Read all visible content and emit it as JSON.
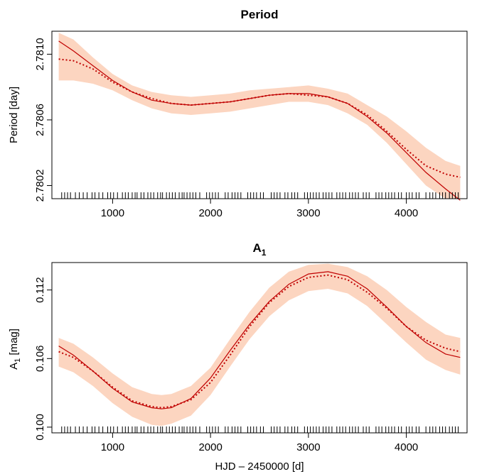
{
  "chart_data": [
    {
      "type": "line",
      "title": "Period",
      "ylabel": "Period [day]",
      "xlabel": "",
      "xlim": [
        380,
        4620
      ],
      "ylim": [
        2.78012,
        2.78114
      ],
      "xticks": [
        1000,
        2000,
        3000,
        4000
      ],
      "xtick_labels": [
        "1000",
        "2000",
        "3000",
        "4000"
      ],
      "yticks": [
        2.7802,
        2.7806,
        2.781
      ],
      "ytick_labels": [
        "2.7802",
        "2.7806",
        "2.7810"
      ],
      "grid": false,
      "colors": {
        "line": "#c00000",
        "band": "#fcd5c0"
      },
      "series": [
        {
          "style": "solid",
          "x": [
            450,
            600,
            800,
            1000,
            1200,
            1400,
            1600,
            1800,
            2000,
            2200,
            2400,
            2600,
            2800,
            3000,
            3200,
            3400,
            3600,
            3800,
            4000,
            4200,
            4400,
            4550
          ],
          "values": [
            2.78108,
            2.78102,
            2.78093,
            2.78084,
            2.78077,
            2.78072,
            2.7807,
            2.78069,
            2.7807,
            2.78071,
            2.78073,
            2.78075,
            2.78076,
            2.78076,
            2.78074,
            2.7807,
            2.78062,
            2.78052,
            2.7804,
            2.78028,
            2.78018,
            2.78011
          ]
        },
        {
          "style": "dotted",
          "x": [
            450,
            600,
            800,
            1000,
            1200,
            1400,
            1600,
            1800,
            2000,
            2200,
            2400,
            2600,
            2800,
            3000,
            3200,
            3400,
            3600,
            3800,
            4000,
            4200,
            4400,
            4550
          ],
          "values": [
            2.78097,
            2.78096,
            2.78091,
            2.78083,
            2.78077,
            2.78073,
            2.7807,
            2.78069,
            2.7807,
            2.78071,
            2.78073,
            2.78075,
            2.78076,
            2.78075,
            2.78074,
            2.7807,
            2.78063,
            2.78053,
            2.78042,
            2.78032,
            2.78027,
            2.78025
          ]
        },
        {
          "style": "band",
          "x": [
            450,
            600,
            800,
            1000,
            1200,
            1400,
            1600,
            1800,
            2000,
            2200,
            2400,
            2600,
            2800,
            3000,
            3200,
            3400,
            3600,
            3800,
            4000,
            4200,
            4400,
            4550
          ],
          "upper": [
            2.78113,
            2.78109,
            2.78098,
            2.78088,
            2.78081,
            2.78077,
            2.78075,
            2.78074,
            2.78075,
            2.78076,
            2.78078,
            2.78079,
            2.7808,
            2.78081,
            2.78079,
            2.78076,
            2.78069,
            2.78062,
            2.78053,
            2.78043,
            2.78035,
            2.78032
          ],
          "lower": [
            2.78084,
            2.78084,
            2.78082,
            2.78078,
            2.78072,
            2.78067,
            2.78064,
            2.78063,
            2.78064,
            2.78065,
            2.78067,
            2.78069,
            2.78071,
            2.78071,
            2.78069,
            2.78064,
            2.78057,
            2.78046,
            2.78033,
            2.7802,
            2.78012,
            2.78012
          ]
        }
      ],
      "rug": [
        480,
        510,
        540,
        570,
        620,
        660,
        700,
        740,
        790,
        820,
        860,
        900,
        950,
        980,
        1010,
        1050,
        1100,
        1130,
        1160,
        1200,
        1230,
        1250,
        1290,
        1320,
        1360,
        1390,
        1420,
        1460,
        1490,
        1510,
        1550,
        1580,
        1610,
        1640,
        1680,
        1710,
        1730,
        1760,
        1790,
        1820,
        1850,
        1890,
        1960,
        1990,
        2020,
        2050,
        2080,
        2150,
        2180,
        2220,
        2250,
        2280,
        2310,
        2380,
        2410,
        2440,
        2470,
        2510,
        2540,
        2620,
        2650,
        2680,
        2710,
        2760,
        2790,
        2830,
        2860,
        2890,
        2960,
        2990,
        3020,
        3050,
        3080,
        3110,
        3150,
        3180,
        3210,
        3240,
        3290,
        3320,
        3350,
        3380,
        3420,
        3450,
        3480,
        3510,
        3560,
        3590,
        3620,
        3690,
        3720,
        3750,
        3790,
        3820,
        3850,
        3880,
        3920,
        3950,
        4000,
        4030,
        4060,
        4100,
        4130,
        4200,
        4240,
        4270,
        4300,
        4340,
        4370,
        4400,
        4440,
        4470,
        4500,
        4530
      ]
    },
    {
      "type": "line",
      "title": "A",
      "title_sub": "1",
      "ylabel": "A",
      "ylabel_sub": "1",
      "ylabel_suffix": " [mag]",
      "xlabel": "HJD – 2450000 [d]",
      "xlim": [
        380,
        4620
      ],
      "ylim": [
        0.0995,
        0.1144
      ],
      "xticks": [
        1000,
        2000,
        3000,
        4000
      ],
      "xtick_labels": [
        "1000",
        "2000",
        "3000",
        "4000"
      ],
      "yticks": [
        0.1,
        0.106,
        0.112
      ],
      "ytick_labels": [
        "0.100",
        "0.106",
        "0.112"
      ],
      "grid": false,
      "colors": {
        "line": "#c00000",
        "band": "#fcd5c0"
      },
      "series": [
        {
          "style": "solid",
          "x": [
            450,
            600,
            800,
            1000,
            1200,
            1400,
            1500,
            1600,
            1800,
            2000,
            2200,
            2400,
            2600,
            2800,
            3000,
            3200,
            3400,
            3600,
            3800,
            4000,
            4200,
            4400,
            4550
          ],
          "values": [
            0.1071,
            0.1063,
            0.1049,
            0.1034,
            0.1022,
            0.1017,
            0.1016,
            0.1017,
            0.1025,
            0.1043,
            0.1067,
            0.109,
            0.111,
            0.1125,
            0.1134,
            0.1136,
            0.1132,
            0.1121,
            0.1105,
            0.1088,
            0.1074,
            0.1064,
            0.1061
          ]
        },
        {
          "style": "dotted",
          "x": [
            450,
            600,
            800,
            1000,
            1200,
            1400,
            1500,
            1600,
            1800,
            2000,
            2200,
            2400,
            2600,
            2800,
            3000,
            3200,
            3400,
            3600,
            3800,
            4000,
            4200,
            4400,
            4550
          ],
          "values": [
            0.1066,
            0.1061,
            0.1049,
            0.1035,
            0.1023,
            0.1018,
            0.1017,
            0.1018,
            0.1024,
            0.1039,
            0.1063,
            0.1088,
            0.1109,
            0.1123,
            0.1131,
            0.1133,
            0.1129,
            0.1118,
            0.1104,
            0.1088,
            0.1076,
            0.1069,
            0.1066
          ]
        },
        {
          "style": "band",
          "x": [
            450,
            600,
            800,
            1000,
            1200,
            1400,
            1500,
            1600,
            1800,
            2000,
            2200,
            2400,
            2600,
            2800,
            3000,
            3200,
            3400,
            3600,
            3800,
            4000,
            4200,
            4400,
            4550
          ],
          "upper": [
            0.1078,
            0.1073,
            0.1061,
            0.1047,
            0.1035,
            0.1029,
            0.1028,
            0.1029,
            0.1036,
            0.1052,
            0.1077,
            0.1101,
            0.1122,
            0.1136,
            0.1142,
            0.1143,
            0.114,
            0.1132,
            0.112,
            0.1105,
            0.1092,
            0.1081,
            0.1078
          ],
          "lower": [
            0.1053,
            0.1048,
            0.1036,
            0.1021,
            0.1009,
            0.1002,
            0.1001,
            0.1003,
            0.101,
            0.1028,
            0.1053,
            0.1077,
            0.1097,
            0.1111,
            0.1119,
            0.1121,
            0.1117,
            0.1106,
            0.109,
            0.1074,
            0.1059,
            0.105,
            0.1046
          ]
        }
      ],
      "rug": [
        480,
        510,
        540,
        570,
        620,
        660,
        700,
        740,
        790,
        820,
        860,
        900,
        950,
        980,
        1010,
        1050,
        1100,
        1130,
        1160,
        1200,
        1230,
        1250,
        1290,
        1320,
        1360,
        1390,
        1420,
        1460,
        1490,
        1510,
        1550,
        1580,
        1610,
        1640,
        1680,
        1710,
        1730,
        1760,
        1790,
        1820,
        1850,
        1890,
        1960,
        1990,
        2020,
        2050,
        2080,
        2150,
        2180,
        2220,
        2250,
        2280,
        2310,
        2380,
        2410,
        2440,
        2470,
        2510,
        2540,
        2620,
        2650,
        2680,
        2710,
        2760,
        2790,
        2830,
        2860,
        2890,
        2960,
        2990,
        3020,
        3050,
        3080,
        3110,
        3150,
        3180,
        3210,
        3240,
        3290,
        3320,
        3350,
        3380,
        3420,
        3450,
        3480,
        3510,
        3560,
        3590,
        3620,
        3690,
        3720,
        3750,
        3790,
        3820,
        3850,
        3880,
        3920,
        3950,
        4000,
        4030,
        4060,
        4100,
        4130,
        4200,
        4240,
        4270,
        4300,
        4340,
        4370,
        4400,
        4440,
        4470,
        4500,
        4530
      ]
    }
  ]
}
